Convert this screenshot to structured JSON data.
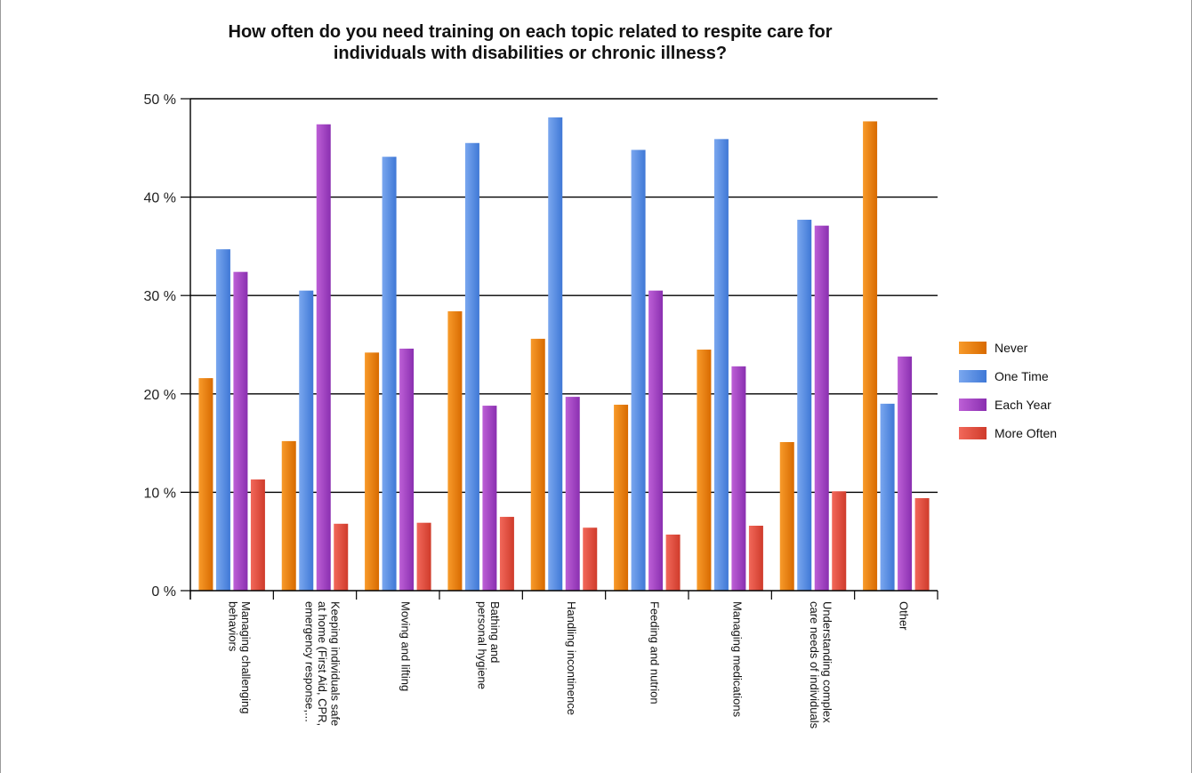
{
  "chart_data": {
    "type": "bar",
    "title_lines": [
      "How often do you need training on each topic related to respite care for",
      "individuals with disabilities or chronic illness?"
    ],
    "xlabel": "",
    "ylabel": "",
    "ylim": [
      0,
      50
    ],
    "ytick_values": [
      0,
      10,
      20,
      30,
      40,
      50
    ],
    "ytick_labels": [
      "0 %",
      "10 %",
      "20 %",
      "30 %",
      "40 %",
      "50 %"
    ],
    "grid": true,
    "legend_position": "right",
    "categories": [
      [
        "Managing challenging",
        "behaviors"
      ],
      [
        "Keeping individuals safe",
        "at home (First Aid, CPR,",
        "emergency response,..."
      ],
      [
        "Moving and lifting"
      ],
      [
        "Bathing and",
        "personal hygiene"
      ],
      [
        "Handling incontinence"
      ],
      [
        "Feeding and nutrion"
      ],
      [
        "Managing medications"
      ],
      [
        "Understanding complex",
        "care needs of individuals"
      ],
      [
        "Other"
      ]
    ],
    "series": [
      {
        "name": "Never",
        "color_top": "#f89a2a",
        "color_bottom": "#d86a00",
        "color": "#f28c1c",
        "values": [
          21.6,
          15.2,
          24.2,
          28.4,
          25.6,
          18.9,
          24.5,
          15.1,
          47.7
        ]
      },
      {
        "name": "One Time",
        "color_top": "#7aa7ef",
        "color_bottom": "#3f78d6",
        "color": "#5b8ee6",
        "values": [
          34.7,
          30.5,
          44.1,
          45.5,
          48.1,
          44.8,
          45.9,
          37.7,
          19.0
        ]
      },
      {
        "name": "Each Year",
        "color_top": "#bd5fd6",
        "color_bottom": "#8a2fb0",
        "color": "#a546c7",
        "values": [
          32.4,
          47.4,
          24.6,
          18.8,
          19.7,
          30.5,
          22.8,
          37.1,
          23.8
        ]
      },
      {
        "name": "More Often",
        "color_top": "#f2685a",
        "color_bottom": "#cf3b2b",
        "color": "#e84a3a",
        "values": [
          11.3,
          6.8,
          6.9,
          7.5,
          6.4,
          5.7,
          6.6,
          10.1,
          9.4
        ]
      }
    ]
  }
}
